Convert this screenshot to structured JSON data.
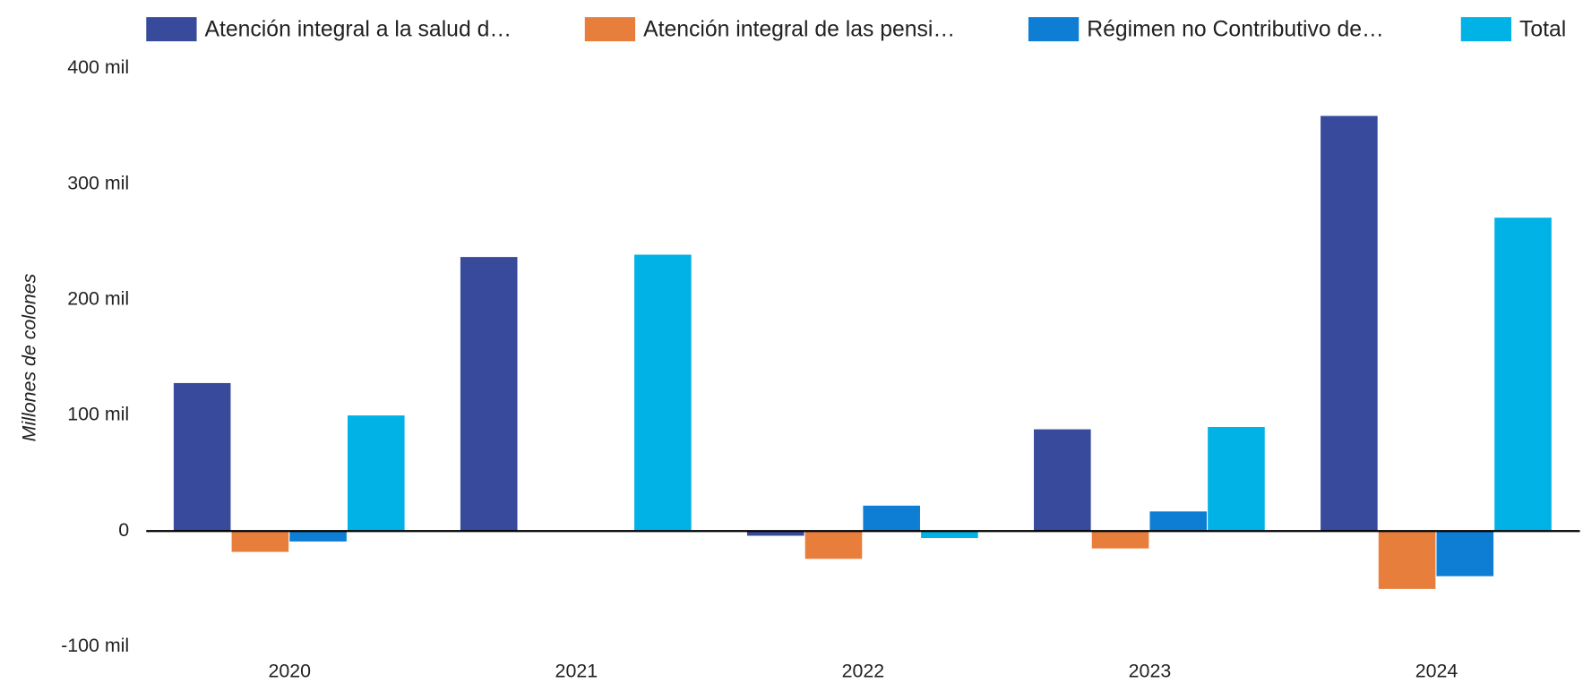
{
  "chart_data": {
    "type": "bar",
    "y_label": "Millones de colones",
    "categories": [
      "2020",
      "2021",
      "2022",
      "2023",
      "2024"
    ],
    "series": [
      {
        "name": "Atención integral a la salud d…",
        "color": "#374a9b",
        "values": [
          128000,
          237000,
          -4000,
          88000,
          359000
        ]
      },
      {
        "name": "Atención integral de las pensi…",
        "color": "#e87e3c",
        "values": [
          -18000,
          0,
          -24000,
          -15000,
          -50000
        ]
      },
      {
        "name": "Régimen no Contributivo de…",
        "color": "#0e7ed4",
        "values": [
          -9000,
          0,
          22000,
          17000,
          -39000
        ]
      },
      {
        "name": "Total",
        "color": "#00b2e5",
        "values": [
          100000,
          239000,
          -6000,
          90000,
          271000
        ]
      }
    ],
    "ylim": [
      -100000,
      400000
    ],
    "yticks": [
      {
        "value": -100000,
        "label": "-100 mil"
      },
      0,
      {
        "value": 100000,
        "label": "100 mil"
      },
      {
        "value": 200000,
        "label": "200 mil"
      },
      {
        "value": 300000,
        "label": "300 mil"
      },
      {
        "value": 400000,
        "label": "400 mil"
      }
    ],
    "legend": "top"
  }
}
